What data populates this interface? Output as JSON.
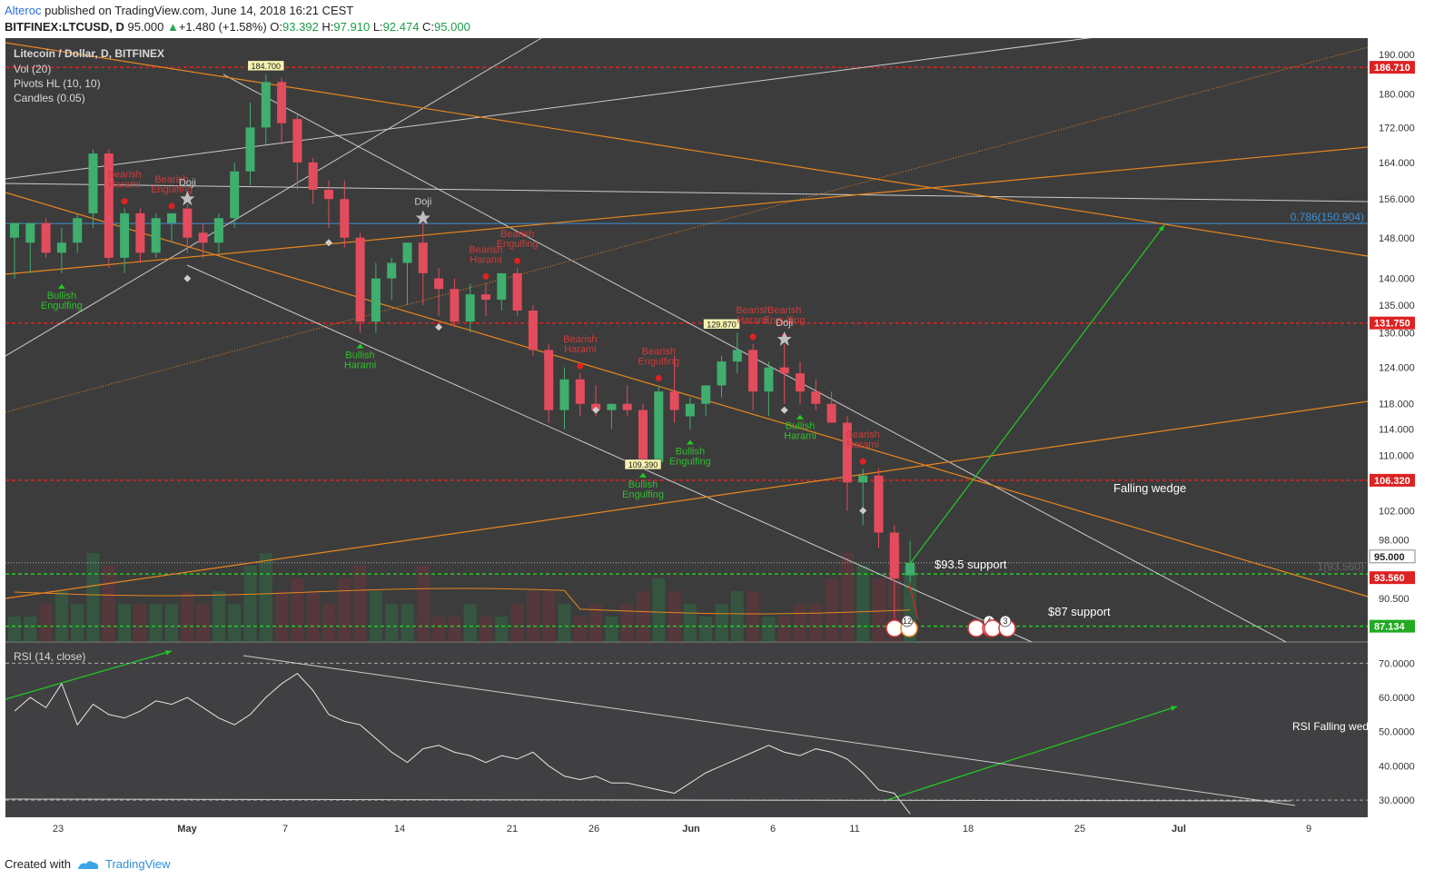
{
  "header": {
    "author": "Alteroc",
    "published": "published on TradingView.com, June 14, 2018 16:21 CEST",
    "symbol": "BITFINEX:LTCUSD, D",
    "last": "95.000",
    "change": "+1.480 (+1.58%)",
    "open_label": "O:",
    "open": "93.392",
    "high_label": "H:",
    "high": "97.910",
    "low_label": "L:",
    "low": "92.474",
    "close_label": "C:",
    "close": "95.000"
  },
  "legend": {
    "title": "Litecoin / Dollar, D, BITFINEX",
    "vol": "Vol (20)",
    "pivots": "Pivots HL (10, 10)",
    "candles": "Candles (0.05)",
    "rsi": "RSI (14, close)"
  },
  "colors": {
    "background": "#3c3c3c",
    "bull": "#3fae6e",
    "bear": "#e34c5d",
    "support": "#22cc22",
    "resistance": "#dd2222",
    "fib": "#3b8fd8",
    "trendline": "#e8861d"
  },
  "chart_data": {
    "type": "candlestick",
    "y_axis": {
      "labels": [
        "190.000",
        "180.000",
        "172.000",
        "164.000",
        "156.000",
        "148.000",
        "140.000",
        "135.000",
        "130.000",
        "124.000",
        "118.000",
        "114.000",
        "110.000",
        "106.000",
        "102.000",
        "98.000",
        "95.000",
        "90.500"
      ],
      "log_scale": true
    },
    "x_axis": {
      "labels": [
        "23",
        "May",
        "7",
        "14",
        "21",
        "26",
        "Jun",
        "6",
        "11",
        "18",
        "25",
        "Jul",
        "9"
      ]
    },
    "price_levels": [
      {
        "label": "186.710",
        "color": "red"
      },
      {
        "label": "131.750",
        "color": "red"
      },
      {
        "label": "106.320",
        "color": "red"
      },
      {
        "label": "95.000",
        "color": "white"
      },
      {
        "label": "93.560",
        "color": "red"
      },
      {
        "label": "87.134",
        "color": "green"
      }
    ],
    "fib_label": "0.786(150.904)",
    "fib_one_label": "1(93.560)",
    "pivot_labels": [
      "184.700",
      "129.870",
      "109.390"
    ],
    "candles": [
      {
        "o": 148,
        "h": 151,
        "l": 140,
        "c": 151
      },
      {
        "o": 147,
        "h": 151,
        "l": 141,
        "c": 151
      },
      {
        "o": 151,
        "h": 152,
        "l": 144,
        "c": 145
      },
      {
        "o": 145,
        "h": 150,
        "l": 141,
        "c": 147
      },
      {
        "o": 147,
        "h": 153,
        "l": 145,
        "c": 152
      },
      {
        "o": 153,
        "h": 167,
        "l": 150,
        "c": 166
      },
      {
        "o": 166,
        "h": 167,
        "l": 142,
        "c": 144
      },
      {
        "o": 144,
        "h": 154,
        "l": 141,
        "c": 153
      },
      {
        "o": 153,
        "h": 154,
        "l": 143,
        "c": 145
      },
      {
        "o": 145,
        "h": 153,
        "l": 144,
        "c": 152
      },
      {
        "o": 151,
        "h": 153,
        "l": 147,
        "c": 153
      },
      {
        "o": 154,
        "h": 155,
        "l": 145,
        "c": 148
      },
      {
        "o": 149,
        "h": 151,
        "l": 144,
        "c": 147
      },
      {
        "o": 147,
        "h": 153,
        "l": 145,
        "c": 152
      },
      {
        "o": 152,
        "h": 164,
        "l": 150,
        "c": 162
      },
      {
        "o": 162,
        "h": 178,
        "l": 159,
        "c": 172
      },
      {
        "o": 172,
        "h": 185,
        "l": 168,
        "c": 183
      },
      {
        "o": 183,
        "h": 184,
        "l": 168,
        "c": 173
      },
      {
        "o": 174,
        "h": 175,
        "l": 158,
        "c": 164
      },
      {
        "o": 164,
        "h": 165,
        "l": 155,
        "c": 158
      },
      {
        "o": 158,
        "h": 160,
        "l": 150,
        "c": 156
      },
      {
        "o": 156,
        "h": 160,
        "l": 146,
        "c": 148
      },
      {
        "o": 148,
        "h": 149,
        "l": 130,
        "c": 132
      },
      {
        "o": 132,
        "h": 143,
        "l": 130,
        "c": 140
      },
      {
        "o": 140,
        "h": 144,
        "l": 136,
        "c": 143
      },
      {
        "o": 143,
        "h": 147,
        "l": 135,
        "c": 147
      },
      {
        "o": 147,
        "h": 151,
        "l": 135,
        "c": 141
      },
      {
        "o": 140,
        "h": 142,
        "l": 133,
        "c": 138
      },
      {
        "o": 138,
        "h": 140,
        "l": 131,
        "c": 132
      },
      {
        "o": 132,
        "h": 139,
        "l": 130,
        "c": 137
      },
      {
        "o": 137,
        "h": 139,
        "l": 133,
        "c": 136
      },
      {
        "o": 136,
        "h": 141,
        "l": 134,
        "c": 141
      },
      {
        "o": 141,
        "h": 142,
        "l": 133,
        "c": 134
      },
      {
        "o": 134,
        "h": 135,
        "l": 126,
        "c": 127
      },
      {
        "o": 127,
        "h": 128,
        "l": 115,
        "c": 117
      },
      {
        "o": 117,
        "h": 124,
        "l": 114,
        "c": 122
      },
      {
        "o": 122,
        "h": 123,
        "l": 116,
        "c": 118
      },
      {
        "o": 118,
        "h": 121,
        "l": 116,
        "c": 117
      },
      {
        "o": 117,
        "h": 118,
        "l": 114,
        "c": 118
      },
      {
        "o": 118,
        "h": 121,
        "l": 116,
        "c": 117
      },
      {
        "o": 117,
        "h": 118,
        "l": 109,
        "c": 109
      },
      {
        "o": 109,
        "h": 121,
        "l": 108,
        "c": 120
      },
      {
        "o": 120,
        "h": 126,
        "l": 115,
        "c": 117
      },
      {
        "o": 116,
        "h": 119,
        "l": 114,
        "c": 118
      },
      {
        "o": 118,
        "h": 121,
        "l": 116,
        "c": 121
      },
      {
        "o": 121,
        "h": 126,
        "l": 119,
        "c": 125
      },
      {
        "o": 125,
        "h": 130,
        "l": 123,
        "c": 127
      },
      {
        "o": 127,
        "h": 128,
        "l": 117,
        "c": 120
      },
      {
        "o": 120,
        "h": 125,
        "l": 116,
        "c": 124
      },
      {
        "o": 124,
        "h": 128,
        "l": 118,
        "c": 123
      },
      {
        "o": 123,
        "h": 125,
        "l": 118,
        "c": 120
      },
      {
        "o": 120,
        "h": 122,
        "l": 117,
        "c": 118
      },
      {
        "o": 118,
        "h": 120,
        "l": 115,
        "c": 115
      },
      {
        "o": 115,
        "h": 116,
        "l": 102,
        "c": 106
      },
      {
        "o": 106,
        "h": 108,
        "l": 100,
        "c": 107
      },
      {
        "o": 107,
        "h": 108,
        "l": 97,
        "c": 99
      },
      {
        "o": 99,
        "h": 100,
        "l": 88,
        "c": 93
      },
      {
        "o": 93.392,
        "h": 97.91,
        "l": 92.474,
        "c": 95
      }
    ],
    "volumes": [
      2,
      2,
      3,
      4,
      3,
      7,
      6,
      3,
      3,
      3,
      3,
      4,
      3,
      4,
      3,
      6,
      7,
      4,
      5,
      4,
      3,
      5,
      6,
      4,
      3,
      3,
      6,
      2,
      2,
      3,
      2,
      2,
      3,
      4,
      4,
      3,
      2,
      3,
      2,
      3,
      4,
      5,
      4,
      3,
      2,
      3,
      4,
      4,
      2,
      2,
      3,
      3,
      5,
      7,
      6,
      5,
      8,
      6
    ],
    "rsi_values": [
      56,
      60,
      57,
      64,
      52,
      58,
      55,
      54,
      56,
      59,
      58,
      60,
      57,
      54,
      52,
      55,
      60,
      64,
      67,
      62,
      55,
      53,
      52,
      48,
      44,
      41,
      45,
      46,
      44,
      43,
      41,
      43,
      42,
      44,
      40,
      37,
      36,
      37,
      35,
      35,
      34,
      33,
      32,
      35,
      38,
      40,
      42,
      44,
      46,
      44,
      43,
      45,
      44,
      42,
      38,
      33,
      32,
      26
    ],
    "rsi_axis": {
      "labels": [
        "70.0000",
        "60.0000",
        "50.0000",
        "40.0000",
        "30.0000"
      ],
      "ylim": [
        25,
        73
      ]
    }
  },
  "patterns": [
    {
      "name": "Bearish\nHarami"
    },
    {
      "name": "Bearish\nEngulfing"
    },
    {
      "name": "Doji"
    },
    {
      "name": "Bullish\nEngulfing"
    },
    {
      "name": "Bullish\nHarami"
    }
  ],
  "annotations": {
    "falling_wedge": "Falling wedge",
    "support_93": "$93.5 support",
    "support_87": "$87 support",
    "rsi_wedge": "RSI Falling wedge"
  },
  "event_badges": [
    "12",
    "4",
    "3"
  ],
  "footer": {
    "created_with": "Created with",
    "brand": "TradingView"
  }
}
